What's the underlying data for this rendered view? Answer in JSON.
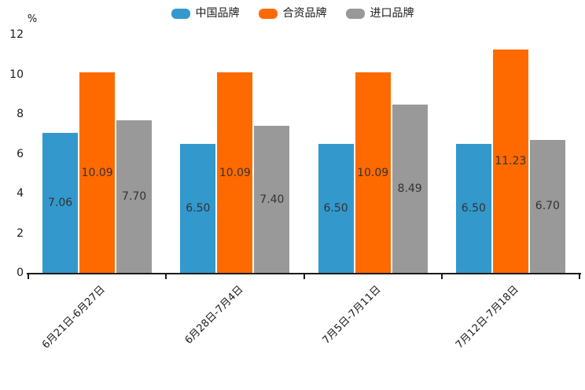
{
  "chart_data": {
    "type": "bar",
    "title": "",
    "ylabel": "%",
    "xlabel": "",
    "categories": [
      "6月21日-6月27日",
      "6月28日-7月4日",
      "7月5日-7月11日",
      "7月12日-7月18日"
    ],
    "series": [
      {
        "name": "中国品牌",
        "color": "#3398CC",
        "values": [
          7.06,
          6.5,
          6.5,
          6.5
        ],
        "labels": [
          "7.06",
          "6.50",
          "6.50",
          "6.50"
        ]
      },
      {
        "name": "合资品牌",
        "color": "#FF6A00",
        "values": [
          10.09,
          10.09,
          10.09,
          11.23
        ],
        "labels": [
          "10.09",
          "10.09",
          "10.09",
          "11.23"
        ]
      },
      {
        "name": "进口品牌",
        "color": "#999999",
        "values": [
          7.7,
          7.4,
          8.49,
          6.7
        ],
        "labels": [
          "7.70",
          "7.40",
          "8.49",
          "6.70"
        ]
      }
    ],
    "ylim": [
      0,
      12
    ],
    "yticks": [
      "12",
      "10",
      "8",
      "6",
      "4",
      "2",
      "0"
    ],
    "grid": false,
    "legend_position": "top-center",
    "value_label_color": "#333333",
    "axis_color": "#1a1a1a",
    "background_color": "#ffffff"
  }
}
